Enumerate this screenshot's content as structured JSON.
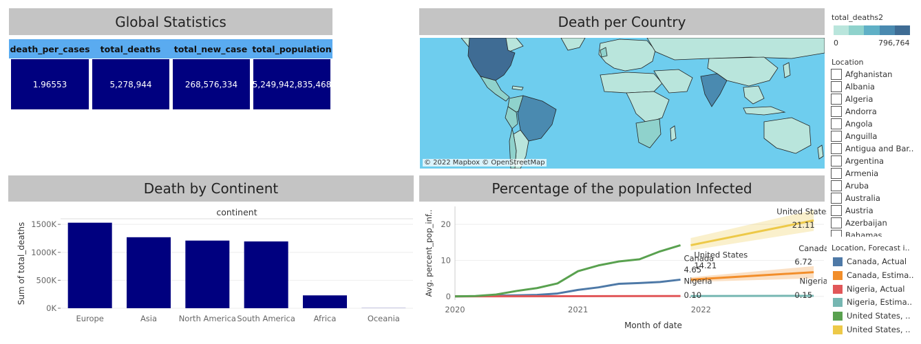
{
  "global": {
    "title": "Global Statistics",
    "headers": [
      "death_per_cases",
      "total_deaths",
      "total_new_case",
      "total_population"
    ],
    "values": [
      "1.96553",
      "5,278,944",
      "268,576,334",
      "5,249,942,835,468"
    ]
  },
  "map": {
    "title": "Death per Country",
    "attribution": "© 2022 Mapbox © OpenStreetMap"
  },
  "legend": {
    "title": "total_deaths2",
    "min_label": "0",
    "max_label": "796,764",
    "colors": [
      "#b9e5dc",
      "#8fd2cc",
      "#5fb0c6",
      "#4a8ab0",
      "#3f6c94"
    ]
  },
  "location_filter": {
    "title": "Location",
    "items": [
      "Afghanistan",
      "Albania",
      "Algeria",
      "Andorra",
      "Angola",
      "Anguilla",
      "Antigua and Bar..",
      "Argentina",
      "Armenia",
      "Aruba",
      "Australia",
      "Austria",
      "Azerbaijan",
      "Bahamas"
    ]
  },
  "forecast_legend": {
    "title": "Location, Forecast i..",
    "items": [
      {
        "label": "Canada, Actual",
        "color": "#4e79a7"
      },
      {
        "label": "Canada, Estima..",
        "color": "#f28e2b"
      },
      {
        "label": "Nigeria, Actual",
        "color": "#e15759"
      },
      {
        "label": "Nigeria, Estima..",
        "color": "#76b7b2"
      },
      {
        "label": "United States, ..",
        "color": "#59a14f"
      },
      {
        "label": "United States, ..",
        "color": "#edc948"
      }
    ]
  },
  "continent_chart": {
    "panel_title": "Death by Continent"
  },
  "infect_chart": {
    "panel_title": "Percentage of the population Infected"
  },
  "chart_data": [
    {
      "type": "bar",
      "title": "continent",
      "categories": [
        "Europe",
        "Asia",
        "North America",
        "South America",
        "Africa",
        "Oceania"
      ],
      "values": [
        1530000,
        1270000,
        1210000,
        1195000,
        230000,
        2500
      ],
      "ylabel": "Sum of total_deaths",
      "ylim": [
        0,
        1600000
      ],
      "yticks": [
        0,
        500000,
        1000000,
        1500000
      ],
      "ytick_labels": [
        "0K",
        "500K",
        "1000K",
        "1500K"
      ],
      "color": "#00007f",
      "grid": true
    },
    {
      "type": "line",
      "xlabel": "Month of date",
      "ylabel": "Avg. percent_pop_inf..",
      "xlim": [
        "2020-01",
        "2023-01"
      ],
      "ylim": [
        -1,
        25
      ],
      "xticks": [
        "2020",
        "2021",
        "2022"
      ],
      "yticks": [
        0,
        10,
        20
      ],
      "series": [
        {
          "name": "Canada, Actual",
          "color": "#4e79a7",
          "x": [
            "2020-01",
            "2020-03",
            "2020-05",
            "2020-07",
            "2020-09",
            "2020-11",
            "2021-01",
            "2021-03",
            "2021-05",
            "2021-07",
            "2021-09",
            "2021-11"
          ],
          "y": [
            0,
            0.05,
            0.2,
            0.3,
            0.4,
            0.8,
            1.8,
            2.5,
            3.5,
            3.7,
            4.0,
            4.65
          ]
        },
        {
          "name": "Canada, Estimate",
          "color": "#f28e2b",
          "x": [
            "2021-12",
            "2022-12"
          ],
          "y": [
            4.65,
            6.72
          ],
          "band_low": [
            4.0,
            5.0
          ],
          "band_high": [
            5.3,
            8.4
          ]
        },
        {
          "name": "Nigeria, Actual",
          "color": "#e15759",
          "x": [
            "2020-01",
            "2021-11"
          ],
          "y": [
            0,
            0.1
          ]
        },
        {
          "name": "Nigeria, Estimate",
          "color": "#76b7b2",
          "x": [
            "2021-12",
            "2022-12"
          ],
          "y": [
            0.1,
            0.15
          ]
        },
        {
          "name": "United States, Actual",
          "color": "#59a14f",
          "x": [
            "2020-01",
            "2020-03",
            "2020-05",
            "2020-07",
            "2020-09",
            "2020-11",
            "2021-01",
            "2021-03",
            "2021-05",
            "2021-07",
            "2021-09",
            "2021-11"
          ],
          "y": [
            0,
            0.1,
            0.5,
            1.5,
            2.3,
            3.6,
            7.0,
            8.6,
            9.7,
            10.3,
            12.5,
            14.21
          ]
        },
        {
          "name": "United States, Estimate",
          "color": "#edc948",
          "x": [
            "2021-12",
            "2022-12"
          ],
          "y": [
            14.21,
            21.11
          ],
          "band_low": [
            12.8,
            18.2
          ],
          "band_high": [
            16.2,
            24.0
          ]
        }
      ],
      "annotations": [
        {
          "text": "United States",
          "x": "2022-11",
          "y": 22.8
        },
        {
          "text": "21.11",
          "x": "2022-11",
          "y": 19.1
        },
        {
          "text": "Canada",
          "x": "2022-12",
          "y": 12.6
        },
        {
          "text": "6.72",
          "x": "2022-11",
          "y": 8.8
        },
        {
          "text": "Nigeria",
          "x": "2022-12",
          "y": 3.5
        },
        {
          "text": "0.15",
          "x": "2022-11",
          "y": -0.4
        },
        {
          "text": "United States",
          "x": "2022-01",
          "y": 10.8
        },
        {
          "text": "Canada",
          "x": "2021-12",
          "y": 9.8
        },
        {
          "text": "14.21",
          "x": "2022-01",
          "y": 7.8
        },
        {
          "text": "4.65",
          "x": "2021-12",
          "y": 6.6
        },
        {
          "text": "Nigeria",
          "x": "2021-12",
          "y": 3.5
        },
        {
          "text": "0.10",
          "x": "2021-12",
          "y": -0.4
        }
      ]
    }
  ]
}
